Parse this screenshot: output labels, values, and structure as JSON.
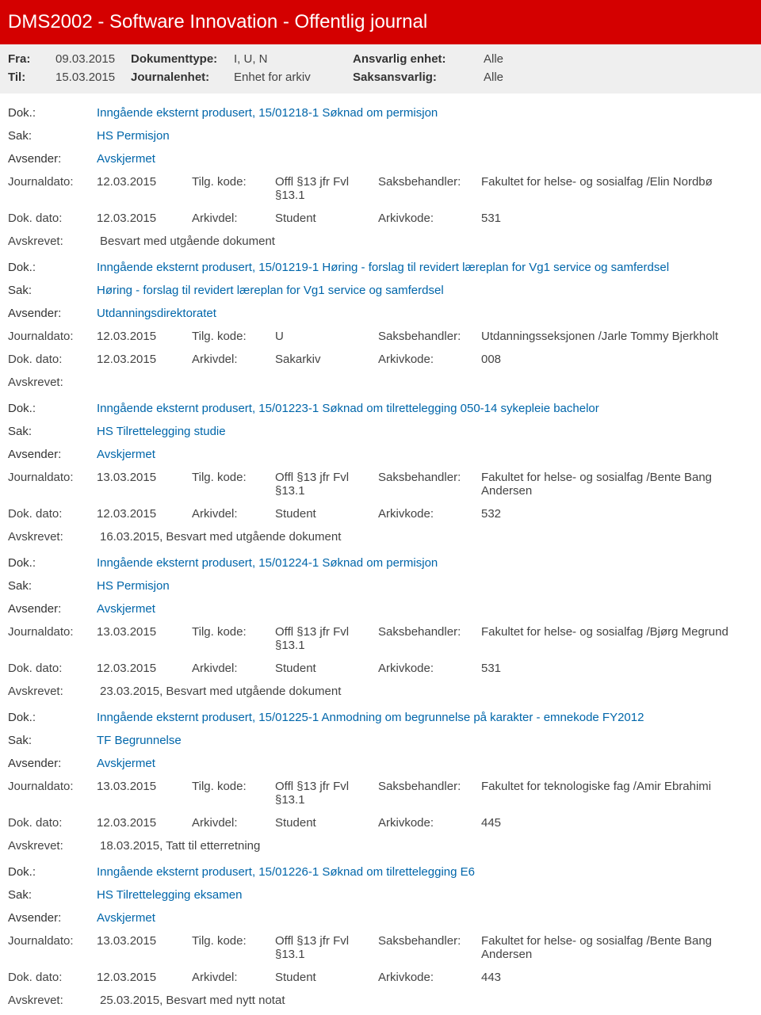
{
  "header": {
    "title": "DMS2002 - Software Innovation - Offentlig journal",
    "fra_label": "Fra:",
    "fra_value": "09.03.2015",
    "til_label": "Til:",
    "til_value": "15.03.2015",
    "doktype_label": "Dokumenttype:",
    "doktype_value": "I, U, N",
    "journalenhet_label": "Journalenhet:",
    "journalenhet_value": "Enhet for arkiv",
    "ansvarlig_label": "Ansvarlig enhet:",
    "ansvarlig_value": "Alle",
    "saks_label": "Saksansvarlig:",
    "saks_value": "Alle"
  },
  "labels": {
    "dok": "Dok.:",
    "sak": "Sak:",
    "avsender": "Avsender:",
    "journaldato": "Journaldato:",
    "dokdato": "Dok. dato:",
    "tilgkode": "Tilg. kode:",
    "arkivdel": "Arkivdel:",
    "saksbehandler": "Saksbehandler:",
    "arkivkode": "Arkivkode:",
    "avskrevet": "Avskrevet:"
  },
  "records": [
    {
      "dok": "Inngående eksternt produsert, 15/01218-1 Søknad om permisjon",
      "sak": "HS Permisjon",
      "avsender": "Avskjermet",
      "journaldato": "12.03.2015",
      "tilgkode": "Offl §13 jfr Fvl §13.1",
      "saksbehandler": "Fakultet for helse- og sosialfag /Elin Nordbø",
      "dokdato": "12.03.2015",
      "arkivdel": "Student",
      "arkivkode": "531",
      "avskrevet": "Besvart med utgående dokument"
    },
    {
      "dok": "Inngående eksternt produsert, 15/01219-1 Høring - forslag til revidert læreplan for Vg1 service og samferdsel",
      "sak": "Høring - forslag til revidert læreplan for Vg1 service og samferdsel",
      "avsender": "Utdanningsdirektoratet",
      "journaldato": "12.03.2015",
      "tilgkode": "U",
      "saksbehandler": "Utdanningsseksjonen /Jarle Tommy Bjerkholt",
      "dokdato": "12.03.2015",
      "arkivdel": "Sakarkiv",
      "arkivkode": "008",
      "avskrevet": ""
    },
    {
      "dok": "Inngående eksternt produsert, 15/01223-1 Søknad om tilrettelegging 050-14 sykepleie bachelor",
      "sak": "HS Tilrettelegging studie",
      "avsender": "Avskjermet",
      "journaldato": "13.03.2015",
      "tilgkode": "Offl §13 jfr Fvl §13.1",
      "saksbehandler": "Fakultet for helse- og sosialfag /Bente Bang Andersen",
      "dokdato": "12.03.2015",
      "arkivdel": "Student",
      "arkivkode": "532",
      "avskrevet": "16.03.2015, Besvart med utgående dokument"
    },
    {
      "dok": "Inngående eksternt produsert, 15/01224-1 Søknad om permisjon",
      "sak": "HS Permisjon",
      "avsender": "Avskjermet",
      "journaldato": "13.03.2015",
      "tilgkode": "Offl §13 jfr Fvl §13.1",
      "saksbehandler": "Fakultet for helse- og sosialfag /Bjørg Megrund",
      "dokdato": "12.03.2015",
      "arkivdel": "Student",
      "arkivkode": "531",
      "avskrevet": "23.03.2015, Besvart med utgående dokument"
    },
    {
      "dok": "Inngående eksternt produsert, 15/01225-1 Anmodning om begrunnelse på karakter - emnekode FY2012",
      "sak": "TF Begrunnelse",
      "avsender": "Avskjermet",
      "journaldato": "13.03.2015",
      "tilgkode": "Offl §13 jfr Fvl §13.1",
      "saksbehandler": "Fakultet for teknologiske fag /Amir Ebrahimi",
      "dokdato": "12.03.2015",
      "arkivdel": "Student",
      "arkivkode": "445",
      "avskrevet": "18.03.2015, Tatt til etterretning"
    },
    {
      "dok": "Inngående eksternt produsert, 15/01226-1 Søknad om tilrettelegging E6",
      "sak": "HS Tilrettelegging eksamen",
      "avsender": "Avskjermet",
      "journaldato": "13.03.2015",
      "tilgkode": "Offl §13 jfr Fvl §13.1",
      "saksbehandler": "Fakultet for helse- og sosialfag /Bente Bang Andersen",
      "dokdato": "12.03.2015",
      "arkivdel": "Student",
      "arkivkode": "443",
      "avskrevet": "25.03.2015, Besvart med nytt notat"
    }
  ]
}
